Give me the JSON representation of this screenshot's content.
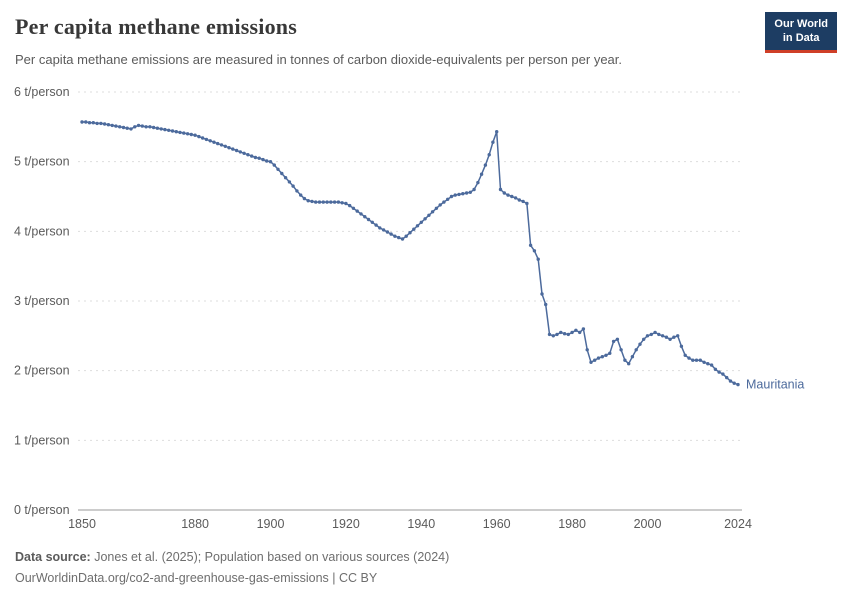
{
  "header": {
    "title": "Per capita methane emissions",
    "subtitle": "Per capita methane emissions are measured in tonnes of carbon dioxide-equivalents per person per year.",
    "logo": {
      "line1": "Our World",
      "line2": "in Data"
    }
  },
  "colors": {
    "line": "#4c6a9c",
    "logo_bg": "#1d3d63",
    "logo_accent": "#cf3f28",
    "gridline": "#dddddd",
    "axis": "#9a9a9a",
    "tick_text": "#5b5b5b"
  },
  "chart_data": {
    "type": "line",
    "title": "Per capita methane emissions",
    "xlabel": "",
    "ylabel": "t/person",
    "ylim": [
      0,
      6
    ],
    "yticks": [
      0,
      1,
      2,
      3,
      4,
      5,
      6
    ],
    "ytick_suffix": " t/person",
    "xticks": [
      1850,
      1880,
      1900,
      1920,
      1940,
      1960,
      1980,
      2000,
      2024
    ],
    "grid": true,
    "legend_position": "end-of-line",
    "series": [
      {
        "name": "Mauritania",
        "color": "#4c6a9c",
        "years": [
          1850,
          1851,
          1852,
          1853,
          1854,
          1855,
          1856,
          1857,
          1858,
          1859,
          1860,
          1861,
          1862,
          1863,
          1864,
          1865,
          1866,
          1867,
          1868,
          1869,
          1870,
          1871,
          1872,
          1873,
          1874,
          1875,
          1876,
          1877,
          1878,
          1879,
          1880,
          1881,
          1882,
          1883,
          1884,
          1885,
          1886,
          1887,
          1888,
          1889,
          1890,
          1891,
          1892,
          1893,
          1894,
          1895,
          1896,
          1897,
          1898,
          1899,
          1900,
          1901,
          1902,
          1903,
          1904,
          1905,
          1906,
          1907,
          1908,
          1909,
          1910,
          1911,
          1912,
          1913,
          1914,
          1915,
          1916,
          1917,
          1918,
          1919,
          1920,
          1921,
          1922,
          1923,
          1924,
          1925,
          1926,
          1927,
          1928,
          1929,
          1930,
          1931,
          1932,
          1933,
          1934,
          1935,
          1936,
          1937,
          1938,
          1939,
          1940,
          1941,
          1942,
          1943,
          1944,
          1945,
          1946,
          1947,
          1948,
          1949,
          1950,
          1951,
          1952,
          1953,
          1954,
          1955,
          1956,
          1957,
          1958,
          1959,
          1960,
          1961,
          1962,
          1963,
          1964,
          1965,
          1966,
          1967,
          1968,
          1969,
          1970,
          1971,
          1972,
          1973,
          1974,
          1975,
          1976,
          1977,
          1978,
          1979,
          1980,
          1981,
          1982,
          1983,
          1984,
          1985,
          1986,
          1987,
          1988,
          1989,
          1990,
          1991,
          1992,
          1993,
          1994,
          1995,
          1996,
          1997,
          1998,
          1999,
          2000,
          2001,
          2002,
          2003,
          2004,
          2005,
          2006,
          2007,
          2008,
          2009,
          2010,
          2011,
          2012,
          2013,
          2014,
          2015,
          2016,
          2017,
          2018,
          2019,
          2020,
          2021,
          2022,
          2023,
          2024
        ],
        "values": [
          5.57,
          5.57,
          5.56,
          5.56,
          5.55,
          5.55,
          5.54,
          5.53,
          5.52,
          5.51,
          5.5,
          5.49,
          5.48,
          5.47,
          5.5,
          5.52,
          5.51,
          5.5,
          5.5,
          5.49,
          5.48,
          5.47,
          5.46,
          5.45,
          5.44,
          5.43,
          5.42,
          5.41,
          5.4,
          5.39,
          5.38,
          5.36,
          5.34,
          5.32,
          5.3,
          5.28,
          5.26,
          5.24,
          5.22,
          5.2,
          5.18,
          5.16,
          5.14,
          5.12,
          5.1,
          5.08,
          5.06,
          5.05,
          5.03,
          5.01,
          5.0,
          4.95,
          4.89,
          4.83,
          4.77,
          4.71,
          4.65,
          4.58,
          4.52,
          4.47,
          4.44,
          4.43,
          4.42,
          4.42,
          4.42,
          4.42,
          4.42,
          4.42,
          4.42,
          4.41,
          4.4,
          4.37,
          4.33,
          4.29,
          4.25,
          4.21,
          4.17,
          4.13,
          4.09,
          4.05,
          4.02,
          3.99,
          3.96,
          3.93,
          3.91,
          3.89,
          3.93,
          3.98,
          4.03,
          4.08,
          4.13,
          4.18,
          4.23,
          4.28,
          4.33,
          4.38,
          4.42,
          4.46,
          4.5,
          4.52,
          4.53,
          4.54,
          4.55,
          4.56,
          4.6,
          4.7,
          4.82,
          4.95,
          5.1,
          5.28,
          5.43,
          4.6,
          4.55,
          4.52,
          4.5,
          4.48,
          4.45,
          4.43,
          4.4,
          3.8,
          3.72,
          3.6,
          3.1,
          2.95,
          2.52,
          2.5,
          2.52,
          2.55,
          2.53,
          2.52,
          2.55,
          2.58,
          2.55,
          2.6,
          2.3,
          2.12,
          2.15,
          2.18,
          2.2,
          2.22,
          2.25,
          2.42,
          2.45,
          2.3,
          2.15,
          2.1,
          2.2,
          2.3,
          2.38,
          2.45,
          2.5,
          2.52,
          2.55,
          2.52,
          2.5,
          2.48,
          2.45,
          2.48,
          2.5,
          2.35,
          2.22,
          2.18,
          2.15,
          2.15,
          2.15,
          2.12,
          2.1,
          2.08,
          2.02,
          1.98,
          1.95,
          1.9,
          1.85,
          1.82,
          1.8
        ]
      }
    ]
  },
  "footer": {
    "source_label": "Data source:",
    "source_text": " Jones et al. (2025); Population based on various sources (2024)",
    "note_text": "OurWorldinData.org/co2-and-greenhouse-gas-emissions | CC BY"
  }
}
